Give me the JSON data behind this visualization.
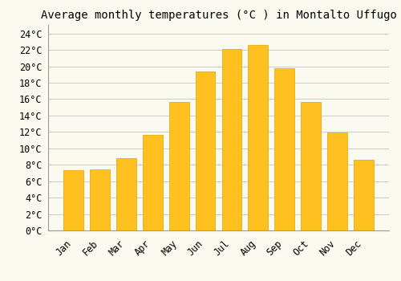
{
  "title": "Average monthly temperatures (°C ) in Montalto Uffugo",
  "months": [
    "Jan",
    "Feb",
    "Mar",
    "Apr",
    "May",
    "Jun",
    "Jul",
    "Aug",
    "Sep",
    "Oct",
    "Nov",
    "Dec"
  ],
  "values": [
    7.3,
    7.4,
    8.8,
    11.6,
    15.7,
    19.4,
    22.1,
    22.6,
    19.8,
    15.7,
    11.9,
    8.6
  ],
  "bar_color_top": "#FFC020",
  "bar_color_bottom": "#FFB000",
  "bar_edge_color": "#E8A000",
  "ylim": [
    0,
    25
  ],
  "yticks": [
    0,
    2,
    4,
    6,
    8,
    10,
    12,
    14,
    16,
    18,
    20,
    22,
    24
  ],
  "background_color": "#FAFAF0",
  "grid_color": "#CCCCCC",
  "title_fontsize": 10,
  "tick_fontsize": 8.5,
  "font_family": "monospace",
  "bar_width": 0.75
}
